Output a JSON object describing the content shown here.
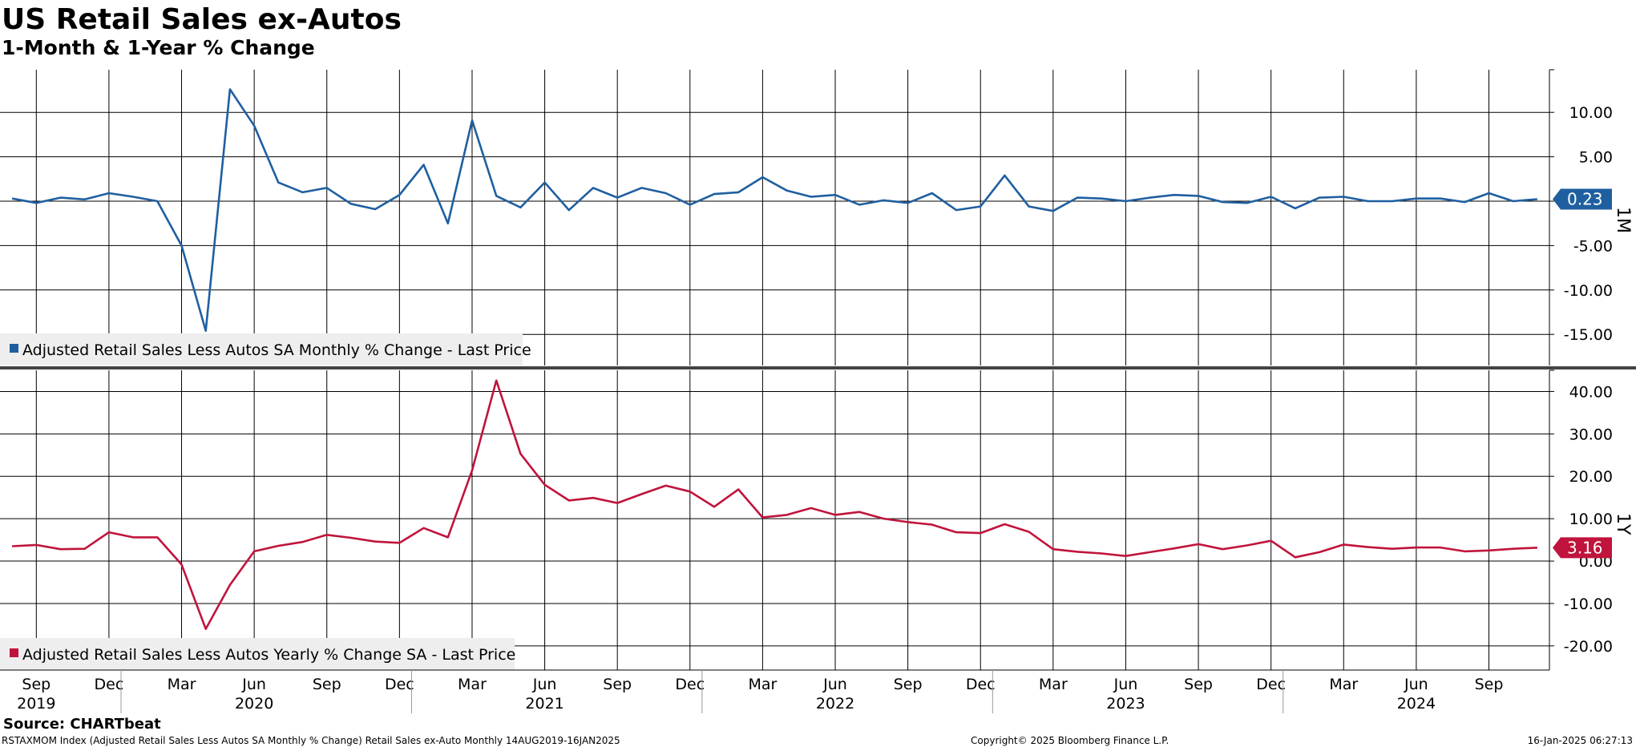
{
  "header": {
    "title": "US Retail Sales ex-Autos",
    "subtitle": "1-Month & 1-Year % Change"
  },
  "footer": {
    "source": "Source: CHARTbeat",
    "description": "RSTAXMOM Index (Adjusted Retail Sales Less Autos SA Monthly % Change) Retail Sales ex-Auto  Monthly 14AUG2019-16JAN2025",
    "copyright": "Copyright© 2025 Bloomberg Finance L.P.",
    "timestamp": "16-Jan-2025 06:27:13"
  },
  "colors": {
    "monthly": "#1f5fa0",
    "yearly": "#c0143c",
    "grid": "#000000",
    "legend_bg": "#eeeeee"
  },
  "chart_data": [
    {
      "type": "line",
      "panel_label": "1M",
      "legend": "Adjusted Retail Sales Less Autos SA Monthly % Change - Last Price",
      "last_label": "0.23",
      "yticks": [
        "10.00",
        "5.00",
        "0.00",
        "-5.00",
        "-10.00",
        "-15.00"
      ],
      "ylim": [
        -18.5,
        14.8
      ],
      "x_start": "2019-08",
      "series": [
        {
          "name": "Adjusted Retail Sales Less Autos SA Monthly % Change - Last Price",
          "values": [
            0.3,
            -0.2,
            0.4,
            0.2,
            0.9,
            0.5,
            0.0,
            -5.0,
            -14.6,
            12.6,
            8.5,
            2.1,
            1.0,
            1.5,
            -0.3,
            -0.9,
            0.7,
            4.1,
            -2.5,
            9.1,
            0.6,
            -0.7,
            2.1,
            -1.0,
            1.5,
            0.4,
            1.5,
            0.9,
            -0.4,
            0.8,
            1.0,
            2.7,
            1.2,
            0.5,
            0.7,
            -0.4,
            0.1,
            -0.2,
            0.9,
            -1.0,
            -0.6,
            2.9,
            -0.6,
            -1.1,
            0.4,
            0.3,
            0.0,
            0.4,
            0.7,
            0.6,
            -0.1,
            -0.2,
            0.5,
            -0.8,
            0.4,
            0.5,
            0.0,
            0.0,
            0.3,
            0.3,
            -0.1,
            0.9,
            0.0,
            0.23
          ]
        }
      ]
    },
    {
      "type": "line",
      "panel_label": "1Y",
      "legend": "Adjusted Retail Sales Less Autos Yearly % Change SA - Last Price",
      "last_label": "3.16",
      "yticks": [
        "40.00",
        "30.00",
        "20.00",
        "10.00",
        "0.00",
        "-10.00",
        "-20.00"
      ],
      "ylim": [
        -25.7,
        45
      ],
      "x_start": "2019-08",
      "series": [
        {
          "name": "Adjusted Retail Sales Less Autos Yearly % Change SA - Last Price",
          "values": [
            3.5,
            3.8,
            2.8,
            2.9,
            6.8,
            5.6,
            5.6,
            -0.8,
            -16.0,
            -5.6,
            2.3,
            3.6,
            4.5,
            6.2,
            5.5,
            4.6,
            4.3,
            7.8,
            5.6,
            21.4,
            42.6,
            25.3,
            18.0,
            14.3,
            14.9,
            13.7,
            15.8,
            17.8,
            16.4,
            12.8,
            16.9,
            10.3,
            10.9,
            12.5,
            10.9,
            11.6,
            10.0,
            9.2,
            8.6,
            6.8,
            6.6,
            8.7,
            6.9,
            2.8,
            2.2,
            1.8,
            1.2,
            2.1,
            3.0,
            4.0,
            2.8,
            3.7,
            4.8,
            0.9,
            2.1,
            3.9,
            3.3,
            2.9,
            3.2,
            3.2,
            2.3,
            2.5,
            2.9,
            3.16
          ]
        }
      ]
    }
  ],
  "x_axis": {
    "months": [
      {
        "label": "Sep",
        "index": 1
      },
      {
        "label": "Dec",
        "index": 4
      },
      {
        "label": "Mar",
        "index": 7
      },
      {
        "label": "Jun",
        "index": 10
      },
      {
        "label": "Sep",
        "index": 13
      },
      {
        "label": "Dec",
        "index": 16
      },
      {
        "label": "Mar",
        "index": 19
      },
      {
        "label": "Jun",
        "index": 22
      },
      {
        "label": "Sep",
        "index": 25
      },
      {
        "label": "Dec",
        "index": 28
      },
      {
        "label": "Mar",
        "index": 31
      },
      {
        "label": "Jun",
        "index": 34
      },
      {
        "label": "Sep",
        "index": 37
      },
      {
        "label": "Dec",
        "index": 40
      },
      {
        "label": "Mar",
        "index": 43
      },
      {
        "label": "Jun",
        "index": 46
      },
      {
        "label": "Sep",
        "index": 49
      },
      {
        "label": "Dec",
        "index": 52
      },
      {
        "label": "Mar",
        "index": 55
      },
      {
        "label": "Jun",
        "index": 58
      },
      {
        "label": "Sep",
        "index": 61
      }
    ],
    "years": [
      {
        "label": "2019",
        "index": 1
      },
      {
        "label": "2020",
        "index": 10
      },
      {
        "label": "2021",
        "index": 22
      },
      {
        "label": "2022",
        "index": 34
      },
      {
        "label": "2023",
        "index": 46
      },
      {
        "label": "2024",
        "index": 58
      }
    ],
    "year_boundaries": [
      5,
      17,
      29,
      41,
      53
    ]
  }
}
